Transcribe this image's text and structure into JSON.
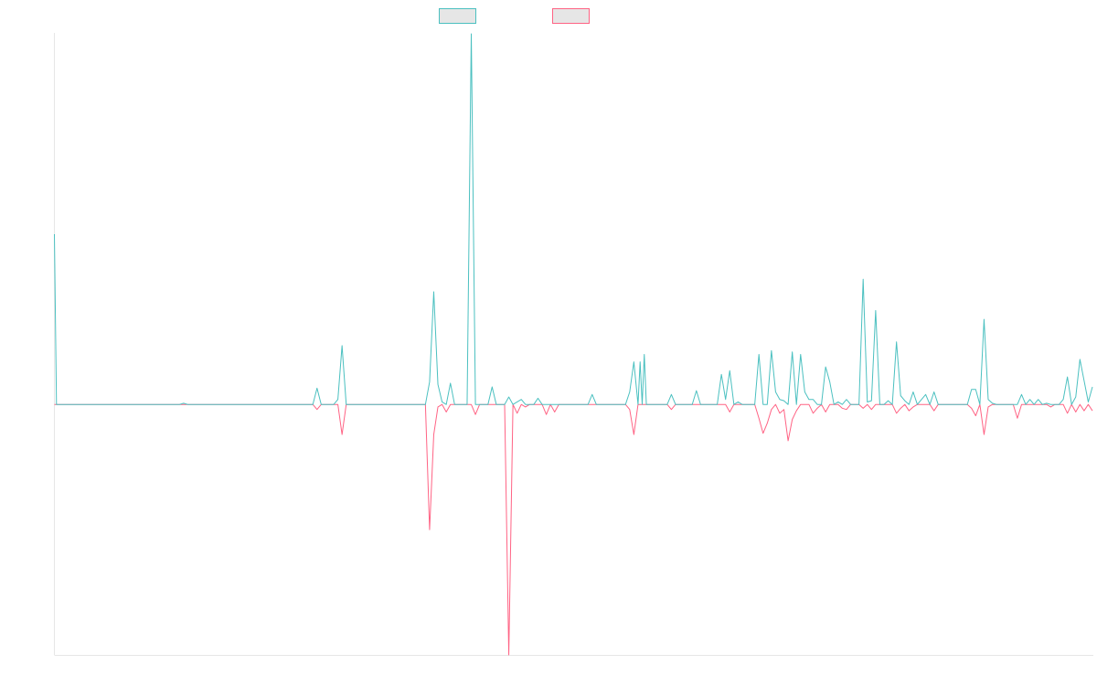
{
  "chart_data": {
    "type": "line",
    "title": "",
    "xlabel": "",
    "ylabel": "",
    "grid": false,
    "legend": "top-center",
    "ylim": [
      -1.0,
      1.48
    ],
    "x_count": 250,
    "series": [
      {
        "color": "#4bc0c0",
        "points": [
          [
            0,
            0.68
          ],
          [
            0.5,
            0
          ],
          [
            30,
            0
          ],
          [
            31,
            0.005
          ],
          [
            32,
            0
          ],
          [
            62,
            0
          ],
          [
            63,
            0.065
          ],
          [
            64,
            0
          ],
          [
            67,
            0
          ],
          [
            68,
            0.02
          ],
          [
            69,
            0.235
          ],
          [
            70,
            0
          ],
          [
            89,
            0
          ],
          [
            90,
            0.09
          ],
          [
            91,
            0.45
          ],
          [
            92,
            0.08
          ],
          [
            93,
            0.01
          ],
          [
            94,
            0
          ],
          [
            95,
            0.085
          ],
          [
            96,
            0
          ],
          [
            99,
            0
          ],
          [
            100,
            1.48
          ],
          [
            101,
            0
          ],
          [
            104,
            0
          ],
          [
            105,
            0.07
          ],
          [
            106,
            0
          ],
          [
            108,
            0
          ],
          [
            109,
            0.03
          ],
          [
            110,
            0
          ],
          [
            112,
            0.02
          ],
          [
            113,
            0
          ],
          [
            115,
            0
          ],
          [
            116,
            0.025
          ],
          [
            117,
            0
          ],
          [
            128,
            0
          ],
          [
            129,
            0.04
          ],
          [
            130,
            0
          ],
          [
            137,
            0
          ],
          [
            138,
            0.05
          ],
          [
            139,
            0.17
          ],
          [
            140,
            0
          ],
          [
            140.5,
            0.17
          ],
          [
            141,
            0
          ],
          [
            141.5,
            0.2
          ],
          [
            142,
            0
          ],
          [
            147,
            0
          ],
          [
            148,
            0.04
          ],
          [
            149,
            0
          ],
          [
            153,
            0
          ],
          [
            154,
            0.055
          ],
          [
            155,
            0
          ],
          [
            159,
            0
          ],
          [
            160,
            0.12
          ],
          [
            161,
            0.02
          ],
          [
            162,
            0.135
          ],
          [
            163,
            0
          ],
          [
            164,
            0.01
          ],
          [
            165,
            0
          ],
          [
            168,
            0
          ],
          [
            169,
            0.2
          ],
          [
            170,
            0
          ],
          [
            171,
            0
          ],
          [
            172,
            0.215
          ],
          [
            173,
            0.05
          ],
          [
            174,
            0.02
          ],
          [
            175,
            0.015
          ],
          [
            176,
            0
          ],
          [
            177,
            0.21
          ],
          [
            178,
            0
          ],
          [
            179,
            0.2
          ],
          [
            180,
            0.05
          ],
          [
            181,
            0.02
          ],
          [
            182,
            0.02
          ],
          [
            183,
            0
          ],
          [
            184,
            0
          ],
          [
            185,
            0.15
          ],
          [
            186,
            0.09
          ],
          [
            187,
            0
          ],
          [
            188,
            0.01
          ],
          [
            189,
            0
          ],
          [
            190,
            0.02
          ],
          [
            191,
            0
          ],
          [
            193,
            0
          ],
          [
            194,
            0.5
          ],
          [
            195,
            0.01
          ],
          [
            196,
            0.015
          ],
          [
            197,
            0.375
          ],
          [
            198,
            0
          ],
          [
            199,
            0
          ],
          [
            200,
            0.015
          ],
          [
            201,
            0
          ],
          [
            202,
            0.25
          ],
          [
            203,
            0.035
          ],
          [
            204,
            0.015
          ],
          [
            205,
            0
          ],
          [
            206,
            0.05
          ],
          [
            207,
            0
          ],
          [
            209,
            0.04
          ],
          [
            210,
            0
          ],
          [
            211,
            0.05
          ],
          [
            212,
            0
          ],
          [
            219,
            0
          ],
          [
            220,
            0.06
          ],
          [
            221,
            0.06
          ],
          [
            222,
            0
          ],
          [
            223,
            0.34
          ],
          [
            224,
            0.02
          ],
          [
            225,
            0.005
          ],
          [
            226,
            0
          ],
          [
            231,
            0
          ],
          [
            232,
            0.04
          ],
          [
            233,
            0
          ],
          [
            234,
            0.02
          ],
          [
            235,
            0
          ],
          [
            236,
            0.02
          ],
          [
            237,
            0
          ],
          [
            238,
            0.005
          ],
          [
            239,
            0
          ],
          [
            241,
            0
          ],
          [
            242,
            0.02
          ],
          [
            243,
            0.11
          ],
          [
            244,
            0
          ],
          [
            245,
            0.03
          ],
          [
            246,
            0.18
          ],
          [
            247,
            0.095
          ],
          [
            248,
            0.01
          ],
          [
            249,
            0.07
          ]
        ]
      },
      {
        "color": "#ff6384",
        "points": [
          [
            0,
            0
          ],
          [
            30,
            0
          ],
          [
            62,
            0
          ],
          [
            63,
            -0.02
          ],
          [
            64,
            0
          ],
          [
            68,
            0
          ],
          [
            69,
            -0.12
          ],
          [
            70,
            0
          ],
          [
            89,
            0
          ],
          [
            90,
            -0.5
          ],
          [
            91,
            -0.12
          ],
          [
            92,
            -0.01
          ],
          [
            93,
            0
          ],
          [
            94,
            -0.03
          ],
          [
            95,
            0
          ],
          [
            100,
            0
          ],
          [
            101,
            -0.04
          ],
          [
            102,
            0
          ],
          [
            108,
            0
          ],
          [
            109,
            -1.0
          ],
          [
            110,
            0
          ],
          [
            111,
            -0.035
          ],
          [
            112,
            0
          ],
          [
            113,
            -0.01
          ],
          [
            114,
            0
          ],
          [
            117,
            0
          ],
          [
            118,
            -0.04
          ],
          [
            119,
            0
          ],
          [
            120,
            -0.03
          ],
          [
            121,
            0
          ],
          [
            137,
            0
          ],
          [
            138,
            -0.02
          ],
          [
            139,
            -0.12
          ],
          [
            140,
            0
          ],
          [
            147,
            0
          ],
          [
            148,
            -0.02
          ],
          [
            149,
            0
          ],
          [
            161,
            0
          ],
          [
            162,
            -0.03
          ],
          [
            163,
            0
          ],
          [
            168,
            0
          ],
          [
            169,
            -0.055
          ],
          [
            170,
            -0.115
          ],
          [
            171,
            -0.075
          ],
          [
            172,
            -0.02
          ],
          [
            173,
            0
          ],
          [
            174,
            -0.035
          ],
          [
            175,
            -0.02
          ],
          [
            176,
            -0.145
          ],
          [
            177,
            -0.06
          ],
          [
            178,
            -0.025
          ],
          [
            179,
            0
          ],
          [
            181,
            0
          ],
          [
            182,
            -0.035
          ],
          [
            183,
            -0.015
          ],
          [
            184,
            0
          ],
          [
            185,
            -0.03
          ],
          [
            186,
            0
          ],
          [
            188,
            0
          ],
          [
            189,
            -0.015
          ],
          [
            190,
            -0.02
          ],
          [
            191,
            0
          ],
          [
            193,
            0
          ],
          [
            194,
            -0.015
          ],
          [
            195,
            0
          ],
          [
            196,
            -0.02
          ],
          [
            197,
            0
          ],
          [
            201,
            0
          ],
          [
            202,
            -0.035
          ],
          [
            203,
            -0.015
          ],
          [
            204,
            0
          ],
          [
            205,
            -0.025
          ],
          [
            206,
            -0.01
          ],
          [
            207,
            0
          ],
          [
            210,
            0
          ],
          [
            211,
            -0.025
          ],
          [
            212,
            0
          ],
          [
            219,
            0
          ],
          [
            220,
            -0.015
          ],
          [
            221,
            -0.045
          ],
          [
            222,
            0
          ],
          [
            223,
            -0.12
          ],
          [
            224,
            -0.01
          ],
          [
            225,
            0
          ],
          [
            230,
            0
          ],
          [
            231,
            -0.055
          ],
          [
            232,
            0
          ],
          [
            238,
            0
          ],
          [
            239,
            -0.01
          ],
          [
            240,
            0
          ],
          [
            242,
            0
          ],
          [
            243,
            -0.035
          ],
          [
            244,
            0
          ],
          [
            245,
            -0.03
          ],
          [
            246,
            0
          ],
          [
            247,
            -0.025
          ],
          [
            248,
            0
          ],
          [
            249,
            -0.025
          ]
        ]
      }
    ]
  }
}
